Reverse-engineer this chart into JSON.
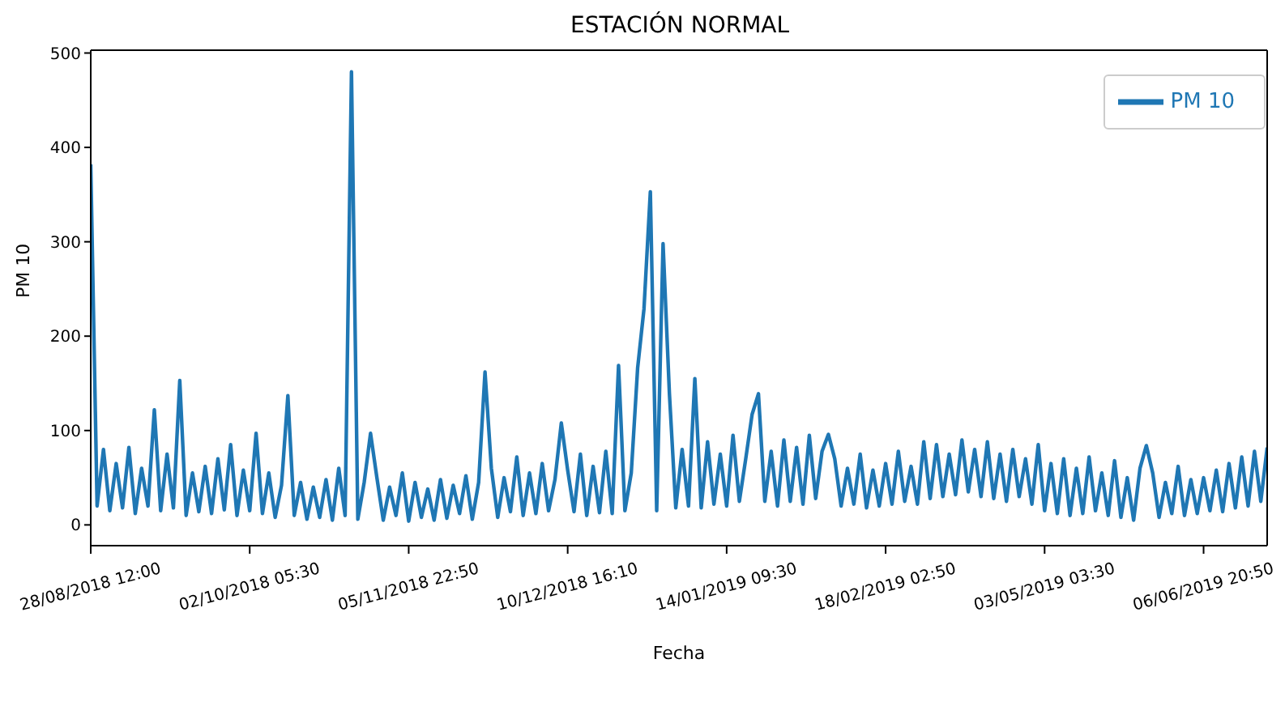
{
  "chart_data": {
    "type": "line",
    "title": "ESTACIÓN NORMAL",
    "xlabel": "Fecha",
    "ylabel": "PM 10",
    "categories": [
      "28/08/2018 12:00",
      null,
      null,
      null,
      null,
      null,
      null,
      null,
      null,
      null,
      null,
      null,
      null,
      null,
      null,
      null,
      null,
      null,
      null,
      null,
      null,
      null,
      null,
      null,
      null,
      "02/10/2018 05:30",
      null,
      null,
      null,
      null,
      null,
      null,
      null,
      null,
      null,
      null,
      null,
      null,
      null,
      null,
      null,
      null,
      null,
      null,
      null,
      null,
      null,
      null,
      null,
      null,
      "05/11/2018 22:50",
      null,
      null,
      null,
      null,
      null,
      null,
      null,
      null,
      null,
      null,
      null,
      null,
      null,
      null,
      null,
      null,
      null,
      null,
      null,
      null,
      null,
      null,
      null,
      null,
      "10/12/2018 16:10",
      null,
      null,
      null,
      null,
      null,
      null,
      null,
      null,
      null,
      null,
      null,
      null,
      null,
      null,
      null,
      null,
      null,
      null,
      null,
      null,
      null,
      null,
      null,
      null,
      "14/01/2019 09:30",
      null,
      null,
      null,
      null,
      null,
      null,
      null,
      null,
      null,
      null,
      null,
      null,
      null,
      null,
      null,
      null,
      null,
      null,
      null,
      null,
      null,
      null,
      null,
      null,
      "18/02/2019 02:50",
      null,
      null,
      null,
      null,
      null,
      null,
      null,
      null,
      null,
      null,
      null,
      null,
      null,
      null,
      null,
      null,
      null,
      null,
      null,
      null,
      null,
      null,
      null,
      null,
      "03/05/2019 03:30",
      null,
      null,
      null,
      null,
      null,
      null,
      null,
      null,
      null,
      null,
      null,
      null,
      null,
      null,
      null,
      null,
      null,
      null,
      null,
      null,
      null,
      null,
      null,
      null,
      "06/06/2019 20:50",
      null,
      null,
      null,
      null,
      null,
      null,
      null,
      null,
      null,
      null
    ],
    "series": [
      {
        "name": "PM 10",
        "color": "#1f77b4",
        "values": [
          382,
          20,
          80,
          15,
          65,
          18,
          82,
          12,
          60,
          20,
          122,
          15,
          75,
          18,
          153,
          10,
          55,
          14,
          62,
          12,
          70,
          16,
          85,
          10,
          58,
          15,
          97,
          12,
          55,
          8,
          42,
          137,
          10,
          45,
          6,
          40,
          8,
          48,
          5,
          60,
          10,
          480,
          6,
          45,
          97,
          50,
          5,
          40,
          10,
          55,
          4,
          45,
          8,
          38,
          5,
          48,
          7,
          42,
          12,
          52,
          6,
          45,
          162,
          60,
          8,
          50,
          14,
          72,
          10,
          55,
          12,
          65,
          15,
          48,
          108,
          58,
          14,
          75,
          10,
          62,
          13,
          78,
          12,
          169,
          15,
          55,
          166,
          229,
          353,
          15,
          298,
          139,
          18,
          80,
          20,
          155,
          18,
          88,
          22,
          75,
          20,
          95,
          25,
          70,
          117,
          139,
          25,
          78,
          20,
          90,
          25,
          82,
          22,
          95,
          28,
          78,
          96,
          70,
          20,
          60,
          22,
          75,
          18,
          58,
          20,
          65,
          22,
          78,
          25,
          62,
          22,
          88,
          28,
          85,
          30,
          75,
          32,
          90,
          35,
          80,
          30,
          88,
          28,
          75,
          25,
          80,
          30,
          70,
          22,
          85,
          15,
          65,
          12,
          70,
          10,
          60,
          12,
          72,
          15,
          55,
          10,
          68,
          8,
          50,
          5,
          60,
          84,
          55,
          8,
          45,
          12,
          62,
          10,
          48,
          12,
          50,
          15,
          58,
          14,
          65,
          18,
          72,
          20,
          78,
          25,
          82
        ]
      }
    ],
    "ylim": [
      -22,
      503
    ],
    "yticks": [
      0,
      100,
      200,
      300,
      400,
      500
    ],
    "legend": "top right",
    "marker": "none",
    "line_style": "solid"
  }
}
